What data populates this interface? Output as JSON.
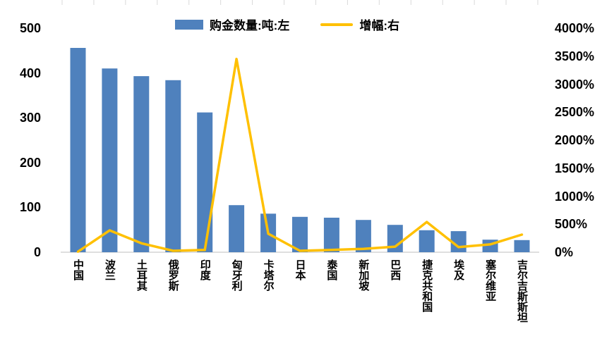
{
  "chart_data": {
    "type": "bar+line",
    "title": "",
    "categories": [
      "中国",
      "波兰",
      "土耳其",
      "俄罗斯",
      "印度",
      "匈牙利",
      "卡塔尔",
      "日本",
      "泰国",
      "新加坡",
      "巴西",
      "捷克共和国",
      "埃及",
      "塞尔维亚",
      "吉尔吉斯斯坦"
    ],
    "series": [
      {
        "name": "购金数量:吨:左",
        "type": "bar",
        "axis": "left",
        "values": [
          456,
          410,
          393,
          384,
          312,
          105,
          86,
          79,
          77,
          72,
          61,
          49,
          47,
          28,
          27
        ]
      },
      {
        "name": "增幅:右",
        "type": "line",
        "axis": "right",
        "values": [
          10,
          390,
          160,
          25,
          40,
          3450,
          330,
          25,
          40,
          60,
          100,
          540,
          90,
          140,
          315
        ]
      }
    ],
    "left_axis": {
      "min": 0,
      "max": 500,
      "tick_labels": [
        "0",
        "100",
        "200",
        "300",
        "400",
        "500"
      ]
    },
    "right_axis": {
      "min": 0,
      "max": 4000,
      "tick_labels": [
        "0%",
        "500%",
        "1000%",
        "1500%",
        "2000%",
        "2500%",
        "3000%",
        "3500%",
        "4000%"
      ]
    },
    "colors": {
      "bar": "#4F81BD",
      "line": "#FFC000",
      "axis_line": "#BFBFBF",
      "tick_mark": "#D9D9D9",
      "text": "#000000"
    },
    "legend_position": "top",
    "grid": false
  }
}
